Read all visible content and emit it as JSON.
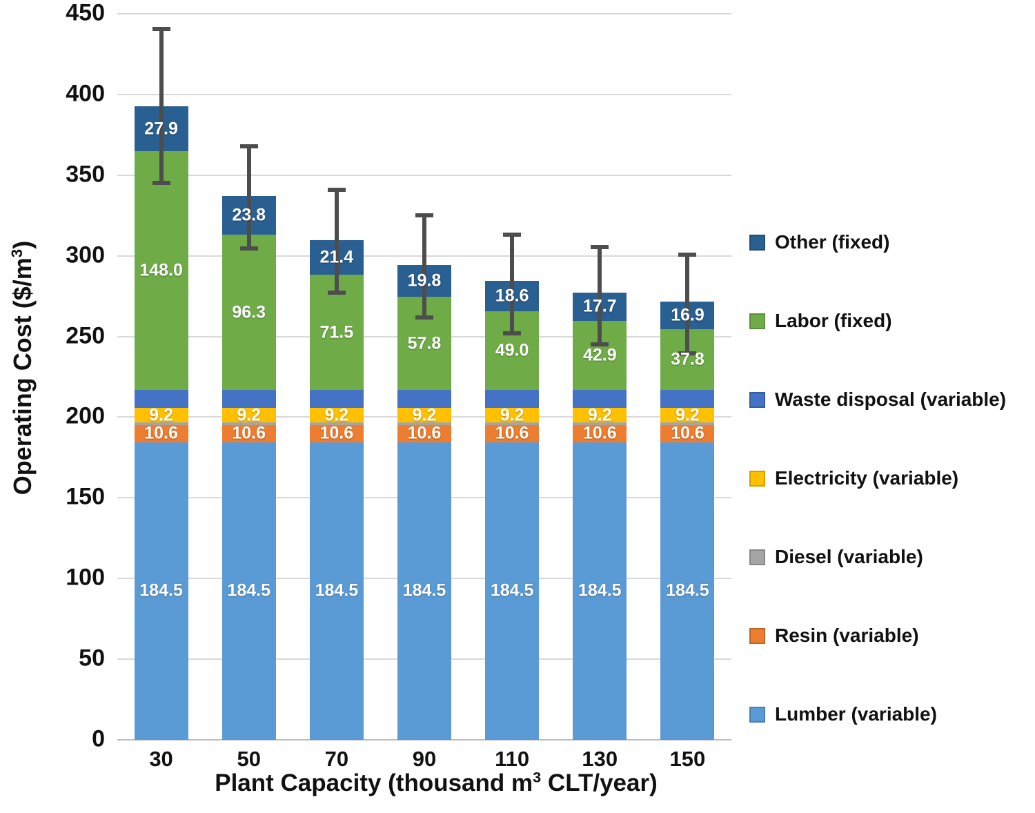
{
  "chart_data": {
    "type": "bar",
    "stacked": true,
    "categories": [
      "30",
      "50",
      "70",
      "90",
      "110",
      "130",
      "150"
    ],
    "xlabel": {
      "pre": "Plant Capacity (thousand m",
      "sup": "3",
      "post": " CLT/year)"
    },
    "ylabel": {
      "pre": "Operating Cost ($/m",
      "sup": "3",
      "post": ")"
    },
    "ylim": [
      0,
      450
    ],
    "ytick_step": 50,
    "grid": true,
    "grid_color": "#D9D9D9",
    "axis_line_color": "#BFBFBF",
    "legend_position": "right",
    "series": [
      {
        "name": "Lumber (variable)",
        "color": "#5B9BD5",
        "show_labels": true,
        "values": [
          184.5,
          184.5,
          184.5,
          184.5,
          184.5,
          184.5,
          184.5
        ]
      },
      {
        "name": "Resin (variable)",
        "color": "#ED7D31",
        "show_labels": true,
        "values": [
          10.6,
          10.6,
          10.6,
          10.6,
          10.6,
          10.6,
          10.6
        ]
      },
      {
        "name": "Diesel (variable)",
        "color": "#A5A5A5",
        "show_labels": false,
        "values": [
          1.5,
          1.5,
          1.5,
          1.5,
          1.5,
          1.5,
          1.5
        ]
      },
      {
        "name": "Electricity (variable)",
        "color": "#FFC000",
        "show_labels": true,
        "values": [
          9.2,
          9.2,
          9.2,
          9.2,
          9.2,
          9.2,
          9.2
        ]
      },
      {
        "name": "Waste disposal (variable)",
        "color": "#4472C4",
        "show_labels": false,
        "values": [
          11.0,
          11.0,
          11.0,
          11.0,
          11.0,
          11.0,
          11.0
        ]
      },
      {
        "name": "Labor (fixed)",
        "color": "#6FAC47",
        "show_labels": true,
        "values": [
          148.0,
          96.3,
          71.5,
          57.8,
          49.0,
          42.9,
          37.8
        ]
      },
      {
        "name": "Other (fixed)",
        "color": "#2A5F91",
        "show_labels": true,
        "values": [
          27.9,
          23.8,
          21.4,
          19.8,
          18.6,
          17.7,
          16.9
        ]
      }
    ],
    "error_bars": {
      "color": "#4D4D4D",
      "high": [
        440.5,
        368.0,
        341.0,
        325.0,
        313.0,
        305.5,
        300.5
      ],
      "low": [
        345.0,
        304.5,
        277.0,
        262.0,
        252.0,
        245.0,
        239.5
      ]
    },
    "legend": [
      "Other (fixed)",
      "Labor (fixed)",
      "Waste disposal (variable)",
      "Electricity (variable)",
      "Diesel (variable)",
      "Resin (variable)",
      "Lumber (variable)"
    ]
  }
}
